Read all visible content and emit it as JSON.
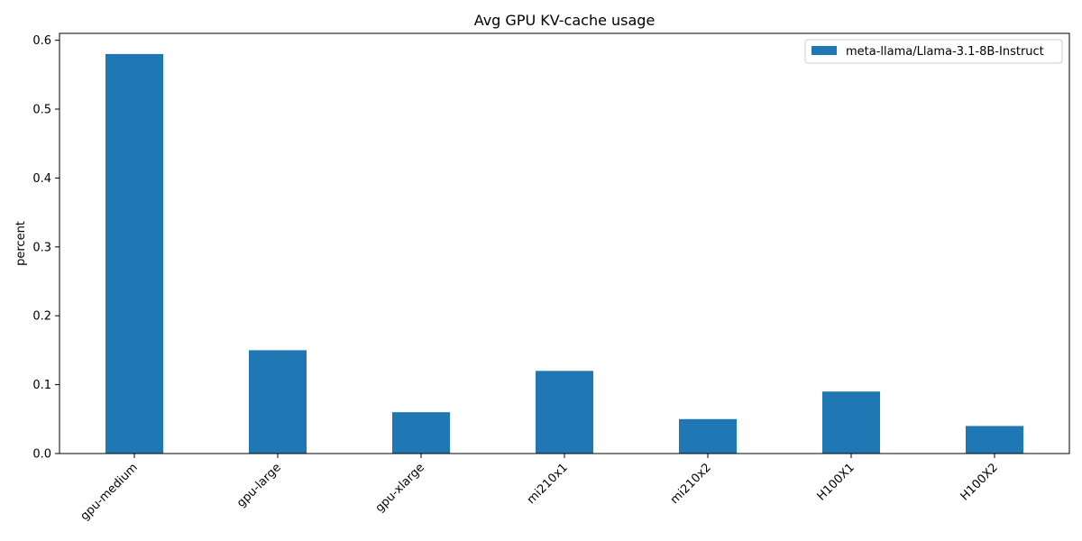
{
  "chart_data": {
    "type": "bar",
    "title": "Avg GPU KV-cache usage",
    "xlabel": "",
    "ylabel": "percent",
    "categories": [
      "gpu-medium",
      "gpu-large",
      "gpu-xlarge",
      "mi210x1",
      "mi210x2",
      "H100X1",
      "H100X2"
    ],
    "series": [
      {
        "name": "meta-llama/Llama-3.1-8B-Instruct",
        "color": "#1f77b4",
        "values": [
          0.58,
          0.15,
          0.06,
          0.12,
          0.05,
          0.09,
          0.04
        ]
      }
    ],
    "ylim": [
      0,
      0.61
    ],
    "yticks": [
      0.0,
      0.1,
      0.2,
      0.3,
      0.4,
      0.5,
      0.6
    ],
    "ytick_labels": [
      "0.0",
      "0.1",
      "0.2",
      "0.3",
      "0.4",
      "0.5",
      "0.6"
    ],
    "grid": false,
    "legend_position": "top-right"
  }
}
